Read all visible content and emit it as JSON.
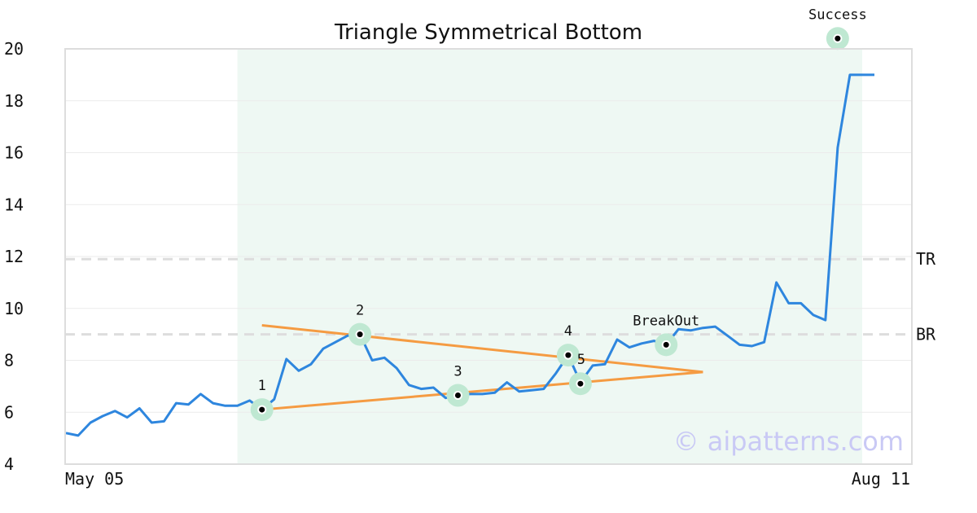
{
  "chart_data": {
    "type": "line",
    "title": "Triangle Symmetrical Bottom",
    "xlabel": "",
    "ylabel": "",
    "ylim": [
      4,
      20
    ],
    "yticks": [
      4,
      6,
      8,
      10,
      12,
      14,
      16,
      18,
      20
    ],
    "x_tick_labels": [
      "May 05",
      "Aug 11"
    ],
    "grid": true,
    "watermark": "© aipatterns.com",
    "colors": {
      "price": "#2e86de",
      "trendline": "#f59b42",
      "shade": "#eef8f3",
      "marker_halo": "#bfe8d2",
      "level": "#dddddd"
    },
    "shaded_range": [
      14,
      65
    ],
    "series": [
      {
        "values": [
          5.2,
          5.1,
          5.6,
          5.85,
          6.05,
          5.8,
          6.15,
          5.6,
          5.65,
          6.35,
          6.3,
          6.7,
          6.35,
          6.25,
          6.25,
          6.45,
          6.1,
          6.5,
          8.05,
          7.6,
          7.85,
          8.45,
          8.7,
          8.95,
          9.0,
          8.0,
          8.1,
          7.7,
          7.05,
          6.9,
          6.95,
          6.55,
          6.65,
          6.7,
          6.7,
          6.75,
          7.15,
          6.8,
          6.85,
          6.9,
          7.5,
          8.2,
          7.15,
          7.8,
          7.85,
          8.8,
          8.5,
          8.65,
          8.75,
          8.6,
          9.2,
          9.15,
          9.25,
          9.3,
          8.95,
          8.6,
          8.55,
          8.7,
          11.0,
          10.2,
          10.2,
          9.75,
          9.55,
          16.2,
          19.0,
          19.0,
          19.0
        ]
      }
    ],
    "trendlines": [
      {
        "from": [
          16,
          9.35
        ],
        "to": [
          52,
          7.55
        ]
      },
      {
        "from": [
          16,
          6.1
        ],
        "to": [
          52,
          7.55
        ]
      }
    ],
    "levels": [
      {
        "label": "TR",
        "value": 11.9
      },
      {
        "label": "BR",
        "value": 9.0
      }
    ],
    "points": [
      {
        "label": "1",
        "x": 16,
        "y": 6.1
      },
      {
        "label": "2",
        "x": 24,
        "y": 9.0
      },
      {
        "label": "3",
        "x": 32,
        "y": 6.65
      },
      {
        "label": "4",
        "x": 41,
        "y": 8.2
      },
      {
        "label": "5",
        "x": 42,
        "y": 7.1
      },
      {
        "label": "BreakOut",
        "x": 49,
        "y": 8.6
      },
      {
        "label": "Success",
        "x": 63,
        "y": 20.4
      }
    ]
  }
}
